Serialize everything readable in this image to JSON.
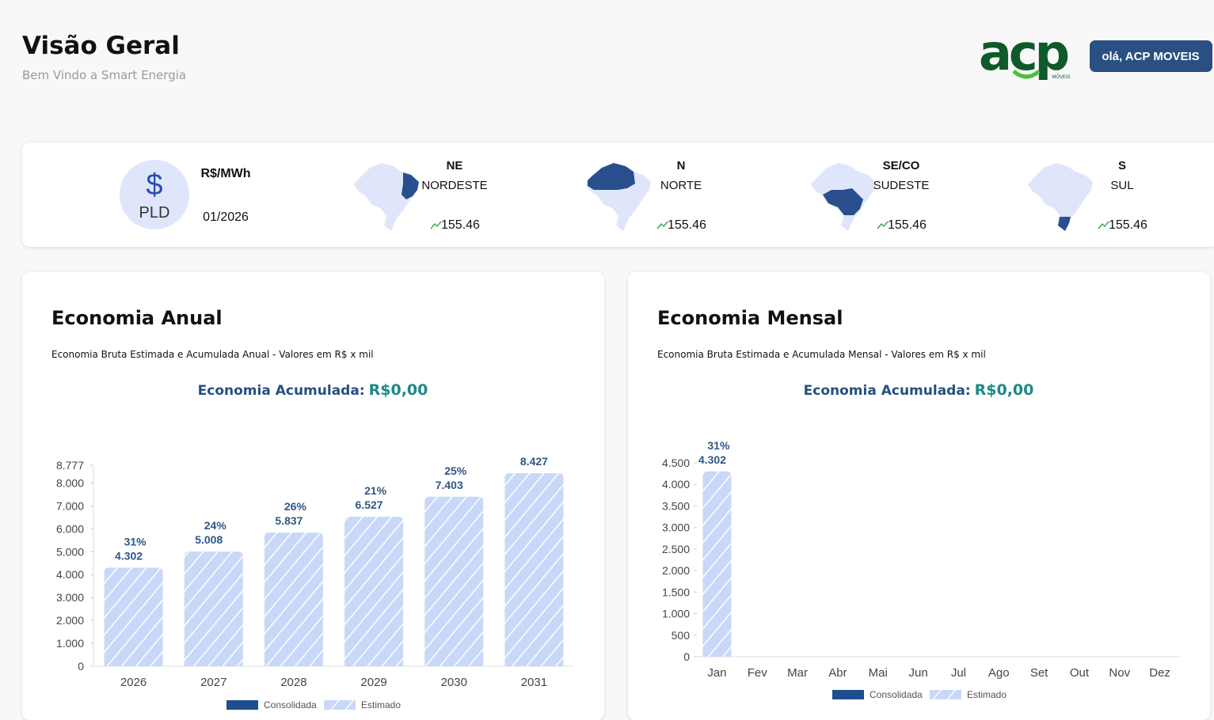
{
  "header": {
    "title": "Visão Geral",
    "subtitle": "Bem Vindo a Smart Energia",
    "logo": "acp",
    "logo_sub": "MÓVEIS",
    "greeting": "olá, ACP MOVEIS"
  },
  "pld": {
    "symbol": "$",
    "label": "PLD",
    "unit": "R$/MWh",
    "date": "01/2026",
    "regions": [
      {
        "code": "NE",
        "name": "NORDESTE",
        "value": 155.46
      },
      {
        "code": "N",
        "name": "NORTE",
        "value": 155.46
      },
      {
        "code": "SE/CO",
        "name": "SUDESTE",
        "value": 155.46
      },
      {
        "code": "S",
        "name": "SUL",
        "value": 155.46
      }
    ]
  },
  "chart_data": [
    {
      "type": "bar",
      "title": "Economia Anual",
      "subtitle": "Economia Bruta Estimada e Acumulada Anual - Valores em R$ x mil",
      "summary_label": "Economia Acumulada:",
      "summary_value": "R$0,00",
      "categories": [
        "2026",
        "2027",
        "2028",
        "2029",
        "2030",
        "2031"
      ],
      "series": [
        {
          "name": "Consolidada",
          "color": "#1f4e8c",
          "values": [
            null,
            null,
            null,
            null,
            null,
            null
          ]
        },
        {
          "name": "Estimado",
          "color": "#c9d8f8",
          "hatch": true,
          "values": [
            4302,
            5008,
            5837,
            6527,
            7403,
            8427
          ],
          "value_labels": [
            "4.302",
            "5.008",
            "5.837",
            "6.527",
            "7.403",
            "8.427"
          ],
          "percent_labels": [
            "31%",
            "24%",
            "26%",
            "21%",
            "25%",
            null
          ]
        }
      ],
      "ylim": [
        0,
        8777
      ],
      "yticks": [
        0,
        {
          "value": 1000,
          "label": "1.000"
        },
        {
          "value": 2000,
          "label": "2.000"
        },
        {
          "value": 3000,
          "label": "3.000"
        },
        {
          "value": 4000,
          "label": "4.000"
        },
        {
          "value": 5000,
          "label": "5.000"
        },
        {
          "value": 6000,
          "label": "6.000"
        },
        {
          "value": 7000,
          "label": "7.000"
        },
        {
          "value": 8000,
          "label": "8.000"
        },
        {
          "value": 8777,
          "label": "8.777"
        }
      ],
      "grid": false,
      "legend": "bottom"
    },
    {
      "type": "bar",
      "title": "Economia Mensal",
      "subtitle": "Economia Bruta Estimada e Acumulada Mensal - Valores em R$ x mil",
      "summary_label": "Economia Acumulada:",
      "summary_value": "R$0,00",
      "categories": [
        "Jan",
        "Fev",
        "Mar",
        "Abr",
        "Mai",
        "Jun",
        "Jul",
        "Ago",
        "Set",
        "Out",
        "Nov",
        "Dez"
      ],
      "series": [
        {
          "name": "Consolidada",
          "color": "#1f4e8c",
          "values": [
            null,
            null,
            null,
            null,
            null,
            null,
            null,
            null,
            null,
            null,
            null,
            null
          ]
        },
        {
          "name": "Estimado",
          "color": "#c9d8f8",
          "hatch": true,
          "values": [
            4302,
            null,
            null,
            null,
            null,
            null,
            null,
            null,
            null,
            null,
            null,
            null
          ],
          "value_labels": [
            "4.302",
            null,
            null,
            null,
            null,
            null,
            null,
            null,
            null,
            null,
            null,
            null
          ],
          "percent_labels": [
            "31%",
            null,
            null,
            null,
            null,
            null,
            null,
            null,
            null,
            null,
            null,
            null
          ]
        }
      ],
      "ylim": [
        0,
        4500
      ],
      "yticks": [
        0,
        500,
        {
          "value": 1000,
          "label": "1.000"
        },
        {
          "value": 1500,
          "label": "1.500"
        },
        {
          "value": 2000,
          "label": "2.000"
        },
        {
          "value": 2500,
          "label": "2.500"
        },
        {
          "value": 3000,
          "label": "3.000"
        },
        {
          "value": 3500,
          "label": "3.500"
        },
        {
          "value": 4000,
          "label": "4.000"
        },
        {
          "value": 4500,
          "label": "4.500"
        }
      ],
      "grid": false,
      "legend": "bottom"
    }
  ]
}
